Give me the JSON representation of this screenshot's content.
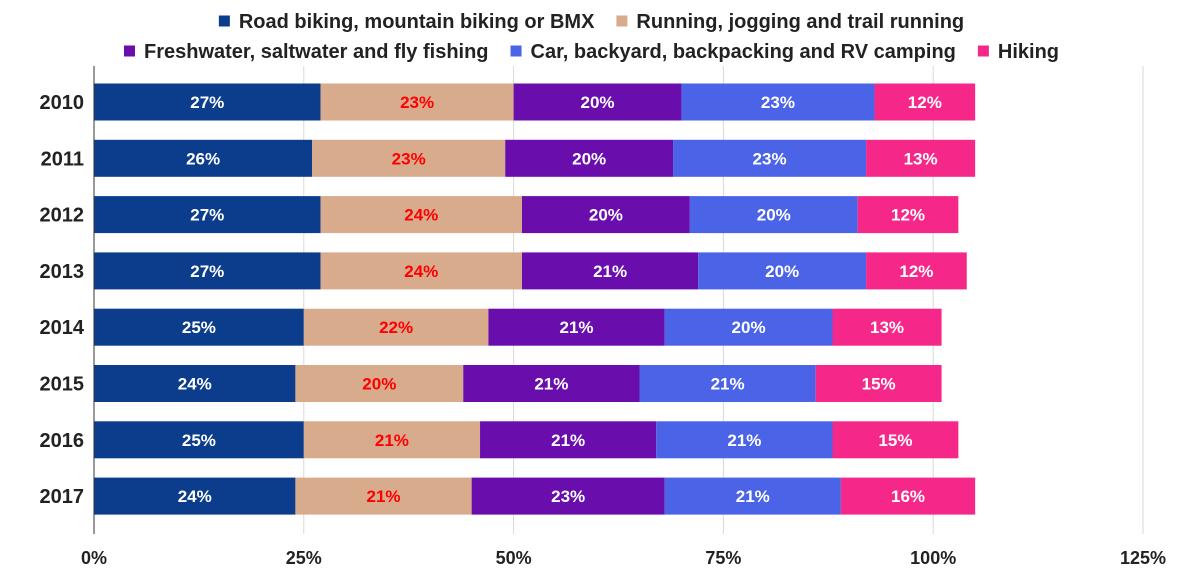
{
  "chart_data": {
    "type": "bar",
    "orientation": "horizontal",
    "stacked": true,
    "title": "",
    "xlabel": "",
    "ylabel": "",
    "xlim": [
      0,
      125
    ],
    "x_ticks": [
      "0%",
      "25%",
      "50%",
      "75%",
      "100%",
      "125%"
    ],
    "x_tick_values": [
      0,
      25,
      50,
      75,
      100,
      125
    ],
    "grid": "vertical",
    "legend": "top",
    "categories": [
      "2010",
      "2011",
      "2012",
      "2013",
      "2014",
      "2015",
      "2016",
      "2017"
    ],
    "series": [
      {
        "name": "Road biking, mountain biking or BMX",
        "color": "#0b3d8c",
        "label_color": "#ffffff",
        "values": [
          27,
          26,
          27,
          27,
          25,
          24,
          25,
          24
        ]
      },
      {
        "name": "Running, jogging and trail running",
        "color": "#d9ab8d",
        "label_color": "#ff0000",
        "values": [
          23,
          23,
          24,
          24,
          22,
          20,
          21,
          21
        ]
      },
      {
        "name": "Freshwater, saltwater and fly fishing",
        "color": "#6a0dad",
        "label_color": "#ffffff",
        "values": [
          20,
          20,
          20,
          21,
          21,
          21,
          21,
          23
        ]
      },
      {
        "name": "Car, backyard, backpacking and RV camping",
        "color": "#4a63e7",
        "label_color": "#ffffff",
        "values": [
          23,
          23,
          20,
          20,
          20,
          21,
          21,
          21
        ]
      },
      {
        "name": "Hiking",
        "color": "#f5288a",
        "label_color": "#ffffff",
        "values": [
          12,
          13,
          12,
          12,
          13,
          15,
          15,
          16
        ]
      }
    ]
  }
}
